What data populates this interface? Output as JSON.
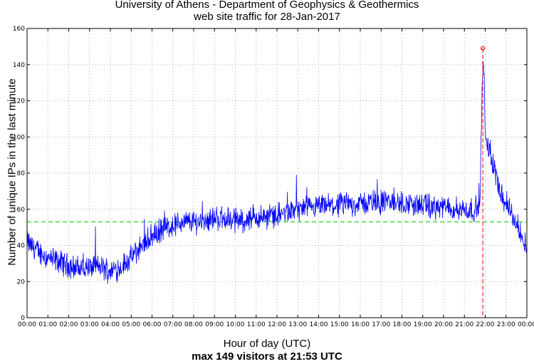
{
  "chart_data": {
    "type": "line",
    "title": "University of Athens - Department of Geophysics & Geothermics",
    "subtitle": "web site traffic for 28-Jan-2017",
    "xlabel": "Hour of day (UTC)",
    "ylabel": "Number of unique IPs in the last minute",
    "footer": "max 149 visitors at 21:53 UTC",
    "x_ticks": [
      "00:00",
      "01:00",
      "02:00",
      "03:00",
      "04:00",
      "05:00",
      "06:00",
      "07:00",
      "08:00",
      "09:00",
      "10:00",
      "11:00",
      "12:00",
      "13:00",
      "14:00",
      "15:00",
      "16:00",
      "17:00",
      "18:00",
      "19:00",
      "20:00",
      "21:00",
      "22:00",
      "23:00",
      "00:00"
    ],
    "y_ticks": [
      0,
      20,
      40,
      60,
      80,
      100,
      120,
      140,
      160
    ],
    "xlim": [
      0,
      24
    ],
    "ylim": [
      0,
      160
    ],
    "grid": true,
    "series": [
      {
        "x_unit": "hours UTC",
        "color": "#0000ff",
        "points": [
          [
            0,
            42
          ],
          [
            0.5,
            37
          ],
          [
            1,
            33
          ],
          [
            1.5,
            31
          ],
          [
            2,
            29
          ],
          [
            2.5,
            27
          ],
          [
            3,
            28
          ],
          [
            3.5,
            28
          ],
          [
            4,
            26
          ],
          [
            4.5,
            28
          ],
          [
            5,
            33
          ],
          [
            5.5,
            40
          ],
          [
            6,
            45
          ],
          [
            6.5,
            49
          ],
          [
            7,
            51
          ],
          [
            7.5,
            53
          ],
          [
            8,
            53
          ],
          [
            8.5,
            54
          ],
          [
            9,
            55
          ],
          [
            9.5,
            55
          ],
          [
            10,
            54
          ],
          [
            10.5,
            54
          ],
          [
            11,
            55
          ],
          [
            11.5,
            56
          ],
          [
            12,
            57
          ],
          [
            12.5,
            58
          ],
          [
            13,
            60
          ],
          [
            13.5,
            60
          ],
          [
            14,
            61
          ],
          [
            14.5,
            62
          ],
          [
            15,
            62
          ],
          [
            15.5,
            63
          ],
          [
            16,
            63
          ],
          [
            16.5,
            64
          ],
          [
            17,
            64
          ],
          [
            17.5,
            64
          ],
          [
            18,
            63
          ],
          [
            18.5,
            63
          ],
          [
            19,
            62
          ],
          [
            19.5,
            61
          ],
          [
            20,
            61
          ],
          [
            20.5,
            60
          ],
          [
            21,
            60
          ],
          [
            21.5,
            60
          ],
          [
            21.75,
            62
          ],
          [
            21.85,
            128
          ],
          [
            21.9,
            140
          ],
          [
            21.95,
            134
          ],
          [
            22.0,
            100
          ],
          [
            22.1,
            95
          ],
          [
            22.3,
            88
          ],
          [
            22.5,
            80
          ],
          [
            22.75,
            70
          ],
          [
            23,
            62
          ],
          [
            23.25,
            58
          ],
          [
            23.5,
            52
          ],
          [
            23.75,
            46
          ],
          [
            24,
            40
          ]
        ],
        "noise_amplitude": 10
      }
    ],
    "mean_line": {
      "value": 53,
      "color": "#00cc00",
      "style": "dashed"
    },
    "max_marker": {
      "time": 21.883,
      "value": 149,
      "color": "#ff0000"
    }
  }
}
